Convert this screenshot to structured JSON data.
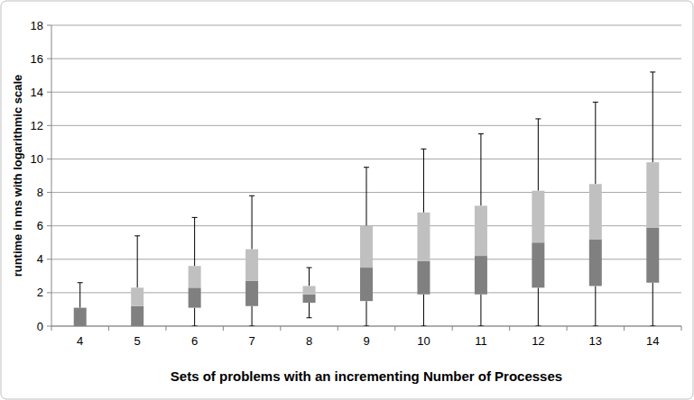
{
  "chart_data": {
    "type": "box",
    "y_label": "runtime in ms  with logarithmic scale",
    "x_label": "Sets of problems with an incrementing Number of Processes",
    "categories": [
      "4",
      "5",
      "6",
      "7",
      "8",
      "9",
      "10",
      "11",
      "12",
      "13",
      "14"
    ],
    "min": [
      0,
      0,
      0,
      0,
      0.5,
      0,
      0,
      0,
      0,
      0,
      0
    ],
    "q1": [
      0,
      0,
      1.1,
      1.2,
      1.4,
      1.5,
      1.9,
      1.9,
      2.3,
      2.4,
      2.6
    ],
    "median": [
      1.1,
      1.2,
      2.3,
      2.7,
      1.9,
      3.5,
      3.9,
      4.2,
      5.0,
      5.2,
      5.9
    ],
    "q3": [
      1.1,
      2.3,
      3.6,
      4.6,
      2.4,
      6.0,
      6.8,
      7.2,
      8.1,
      8.5,
      9.8
    ],
    "max": [
      2.6,
      5.4,
      6.5,
      7.8,
      3.5,
      9.5,
      10.6,
      11.5,
      12.4,
      13.4,
      15.2
    ],
    "colors": [
      "#808080",
      "#c0c0c0"
    ],
    "ylim": [
      0,
      18
    ],
    "yticks": [
      0,
      2,
      4,
      6,
      8,
      10,
      12,
      14,
      16,
      18
    ],
    "grid": true
  }
}
